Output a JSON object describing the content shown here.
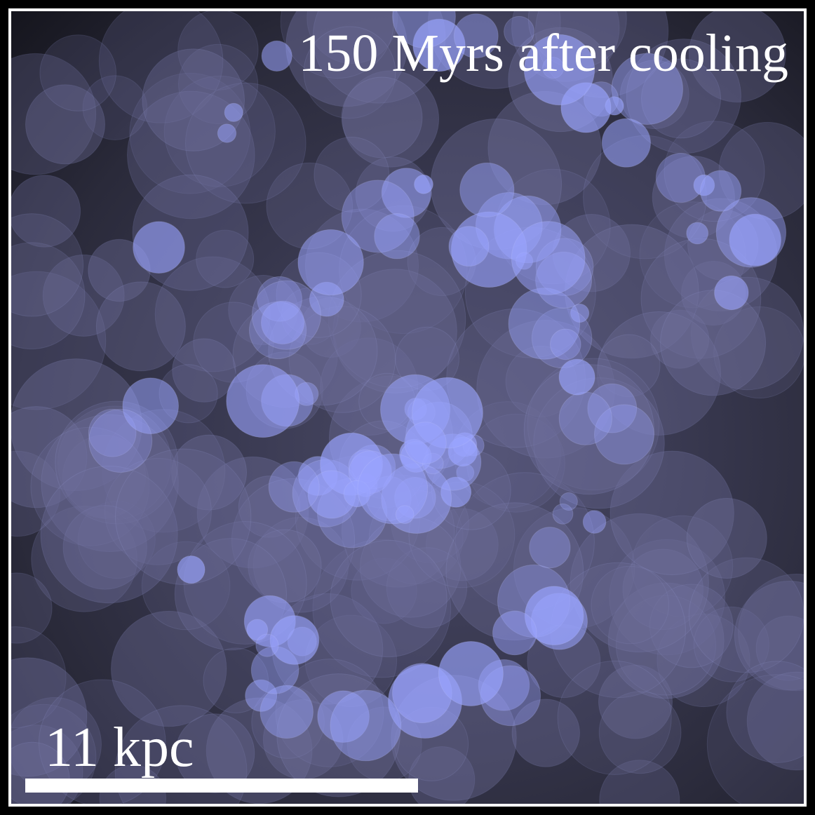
{
  "title": "150 Myrs after cooling",
  "scale_bar": {
    "label": "11 kpc"
  },
  "colors": {
    "frame": "#000000",
    "border": "#ffffff",
    "bubble_bright": "#9aa4ff",
    "bubble_dim": "#6e6e9a",
    "background_center": "#4a4a66",
    "background_edge": "#15151d"
  }
}
